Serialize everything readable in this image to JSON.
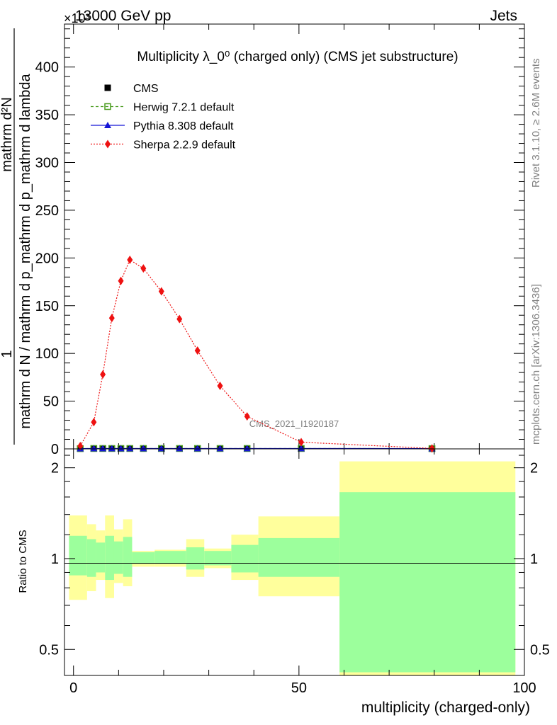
{
  "header": {
    "left": "13000 GeV pp",
    "right": "Jets",
    "exponent": "×10³"
  },
  "side_labels": {
    "rivet": "Rivet 3.1.10, ≥ 2.6M events",
    "mcplots": "mcplots.cern.ch [arXiv:1306.3436]"
  },
  "chart_data": [
    {
      "type": "line",
      "panel": "main",
      "title": "Multiplicity λ_0⁰ (charged only) (CMS jet substructure)",
      "ylabel_numerator": "1",
      "ylabel_denominator": "mathrm d N / mathrm d p_mathrm d p_mathrm d lambda",
      "ylabel_extra": "mathrm d²N",
      "watermark": "CMS_2021_I1920187",
      "xlim": [
        -2,
        100
      ],
      "ylim": [
        0,
        445
      ],
      "y_multiplier": 1000,
      "yticks": [
        0,
        50,
        100,
        150,
        200,
        250,
        300,
        350,
        400
      ],
      "grid": false,
      "legend_position": "top-left",
      "series": [
        {
          "name": "CMS",
          "color": "#000000",
          "marker": "square",
          "x": [
            1.5,
            4.5,
            6.5,
            8.5,
            10.5,
            12.5,
            15.5,
            19.5,
            23.5,
            27.5,
            32.5,
            38.5,
            50.5,
            79.5
          ],
          "y": [
            0.3,
            0.4,
            0.4,
            0.4,
            0.4,
            0.4,
            0.4,
            0.4,
            0.4,
            0.4,
            0.4,
            0.4,
            0.4,
            0.3
          ]
        },
        {
          "name": "Herwig 7.2.1 default",
          "color": "#4a9c1f",
          "marker": "open-square",
          "x": [
            1.5,
            4.5,
            6.5,
            8.5,
            10.5,
            12.5,
            15.5,
            19.5,
            23.5,
            27.5,
            32.5,
            38.5,
            50.5,
            79.5
          ],
          "y": [
            0.3,
            0.4,
            0.4,
            0.4,
            0.4,
            0.4,
            0.4,
            0.4,
            0.4,
            0.4,
            0.4,
            0.4,
            0.4,
            0.3
          ]
        },
        {
          "name": "Pythia 8.308 default",
          "color": "#1515d6",
          "marker": "triangle",
          "x": [
            1.5,
            4.5,
            6.5,
            8.5,
            10.5,
            12.5,
            15.5,
            19.5,
            23.5,
            27.5,
            32.5,
            38.5,
            50.5,
            79.5
          ],
          "y": [
            0.3,
            0.4,
            0.4,
            0.4,
            0.4,
            0.4,
            0.4,
            0.4,
            0.4,
            0.4,
            0.4,
            0.4,
            0.4,
            0.3
          ]
        },
        {
          "name": "Sherpa 2.2.9 default",
          "color": "#ee1111",
          "marker": "diamond",
          "x": [
            1.5,
            4.5,
            6.5,
            8.5,
            10.5,
            12.5,
            15.5,
            19.5,
            23.5,
            27.5,
            32.5,
            38.5,
            50.5,
            79.5
          ],
          "y": [
            3,
            28,
            78,
            137,
            176,
            198,
            189,
            165,
            136,
            103,
            66,
            34,
            7,
            0.5
          ]
        }
      ]
    },
    {
      "type": "area",
      "panel": "ratio",
      "ylabel": "Ratio to CMS",
      "xlabel": "multiplicity (charged-only)",
      "xlim": [
        -2,
        100
      ],
      "ylim": [
        0.41,
        2.31
      ],
      "log_y": true,
      "xticks": [
        0,
        50,
        100
      ],
      "yticks": [
        0.5,
        1,
        2
      ],
      "reference_line": 1,
      "bins": [
        {
          "x0": -1,
          "x1": 3,
          "inner": [
            0.88,
            1.19
          ],
          "outer": [
            0.73,
            1.39
          ]
        },
        {
          "x0": 3,
          "x1": 5,
          "inner": [
            0.87,
            1.16
          ],
          "outer": [
            0.78,
            1.3
          ]
        },
        {
          "x0": 5,
          "x1": 7,
          "inner": [
            0.9,
            1.13
          ],
          "outer": [
            0.85,
            1.24
          ]
        },
        {
          "x0": 7,
          "x1": 9,
          "inner": [
            0.85,
            1.19
          ],
          "outer": [
            0.74,
            1.39
          ]
        },
        {
          "x0": 9,
          "x1": 11,
          "inner": [
            0.89,
            1.14
          ],
          "outer": [
            0.83,
            1.25
          ]
        },
        {
          "x0": 11,
          "x1": 13,
          "inner": [
            0.87,
            1.18
          ],
          "outer": [
            0.81,
            1.35
          ]
        },
        {
          "x0": 13,
          "x1": 18,
          "inner": [
            0.96,
            1.05
          ],
          "outer": [
            0.94,
            1.06
          ]
        },
        {
          "x0": 18,
          "x1": 25,
          "inner": [
            0.96,
            1.06
          ],
          "outer": [
            0.94,
            1.07
          ]
        },
        {
          "x0": 25,
          "x1": 29,
          "inner": [
            0.92,
            1.09
          ],
          "outer": [
            0.87,
            1.16
          ]
        },
        {
          "x0": 29,
          "x1": 35,
          "inner": [
            0.95,
            1.06
          ],
          "outer": [
            0.93,
            1.08
          ]
        },
        {
          "x0": 35,
          "x1": 41,
          "inner": [
            0.9,
            1.11
          ],
          "outer": [
            0.85,
            1.2
          ]
        },
        {
          "x0": 41,
          "x1": 59,
          "inner": [
            0.87,
            1.17
          ],
          "outer": [
            0.75,
            1.38
          ]
        },
        {
          "x0": 59,
          "x1": 98,
          "inner": [
            0.42,
            1.66
          ],
          "outer": [
            0.41,
            2.1
          ]
        }
      ],
      "band_colors": {
        "inner": "#9cff9c",
        "outer": "#ffff9c"
      }
    }
  ]
}
